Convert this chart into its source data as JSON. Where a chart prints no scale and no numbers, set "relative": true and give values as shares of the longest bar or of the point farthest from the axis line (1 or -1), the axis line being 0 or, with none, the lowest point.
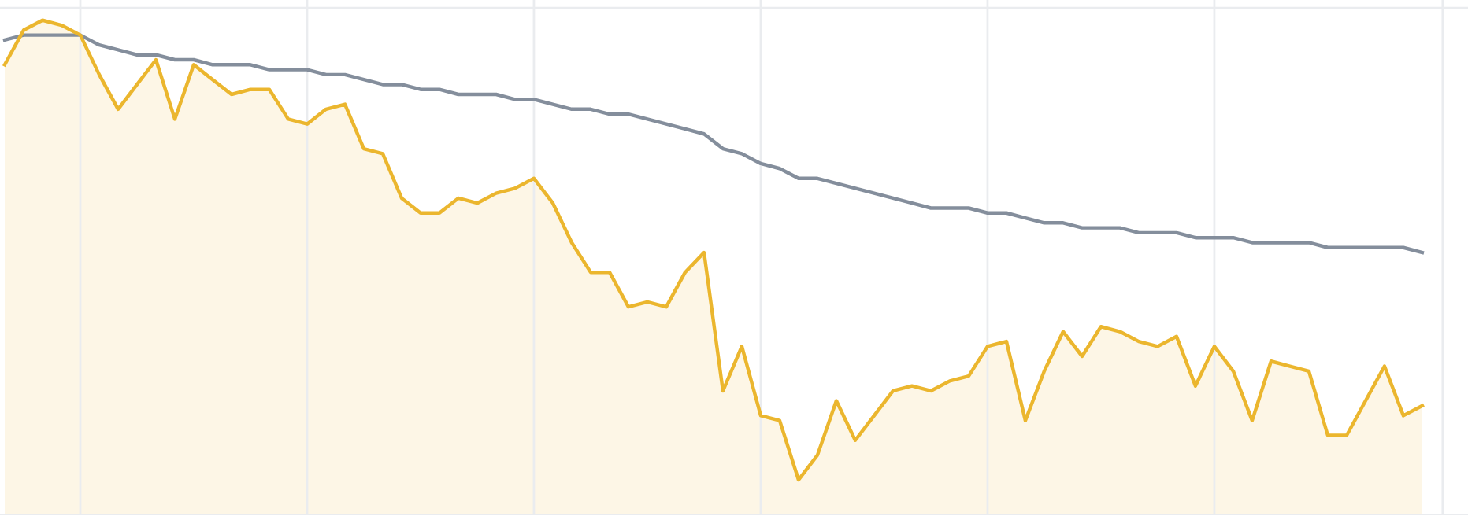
{
  "chart_data": {
    "type": "line",
    "relative": true,
    "grid": true,
    "categories": [
      null,
      null,
      null,
      null,
      null,
      null,
      null,
      null,
      null,
      null,
      null,
      null,
      null,
      null,
      null,
      null,
      null,
      null,
      null,
      null,
      null,
      null,
      null,
      null,
      null,
      null,
      null,
      null,
      null,
      null,
      null,
      null,
      null,
      null,
      null,
      null,
      null,
      null,
      null,
      null,
      null,
      null,
      null,
      null,
      null,
      null,
      null,
      null,
      null,
      null,
      null,
      null,
      null,
      null,
      null,
      null,
      null,
      null,
      null,
      null,
      null,
      null,
      null,
      null,
      null,
      null,
      null,
      null,
      null,
      null,
      null,
      null,
      null,
      null,
      null,
      null
    ],
    "series": [
      {
        "type": "area",
        "color": "#ebb62e",
        "values": [
          0.91,
          0.98,
          1.0,
          0.99,
          0.97,
          0.89,
          0.82,
          0.87,
          0.92,
          0.8,
          0.91,
          0.88,
          0.85,
          0.86,
          0.86,
          0.8,
          0.79,
          0.82,
          0.83,
          0.74,
          0.73,
          0.64,
          0.61,
          0.61,
          0.64,
          0.63,
          0.65,
          0.66,
          0.68,
          0.63,
          0.55,
          0.49,
          0.49,
          0.42,
          0.43,
          0.42,
          0.49,
          0.53,
          0.25,
          0.34,
          0.2,
          0.19,
          0.07,
          0.12,
          0.23,
          0.15,
          0.2,
          0.25,
          0.26,
          0.25,
          0.27,
          0.28,
          0.34,
          0.35,
          0.19,
          0.29,
          0.37,
          0.32,
          0.38,
          0.37,
          0.35,
          0.34,
          0.36,
          0.26,
          0.34,
          0.29,
          0.19,
          0.31,
          0.3,
          0.29,
          0.16,
          0.16,
          0.23,
          0.3,
          0.2,
          0.22
        ]
      },
      {
        "type": "line",
        "color": "#848e9c",
        "values": [
          0.96,
          0.97,
          0.97,
          0.97,
          0.97,
          0.95,
          0.94,
          0.93,
          0.93,
          0.92,
          0.92,
          0.91,
          0.91,
          0.91,
          0.9,
          0.9,
          0.9,
          0.89,
          0.89,
          0.88,
          0.87,
          0.87,
          0.86,
          0.86,
          0.85,
          0.85,
          0.85,
          0.84,
          0.84,
          0.83,
          0.82,
          0.82,
          0.81,
          0.81,
          0.8,
          0.79,
          0.78,
          0.77,
          0.74,
          0.73,
          0.71,
          0.7,
          0.68,
          0.68,
          0.67,
          0.66,
          0.65,
          0.64,
          0.63,
          0.62,
          0.62,
          0.62,
          0.61,
          0.61,
          0.6,
          0.59,
          0.59,
          0.58,
          0.58,
          0.58,
          0.57,
          0.57,
          0.57,
          0.56,
          0.56,
          0.56,
          0.55,
          0.55,
          0.55,
          0.55,
          0.54,
          0.54,
          0.54,
          0.54,
          0.54,
          0.53
        ]
      }
    ]
  }
}
